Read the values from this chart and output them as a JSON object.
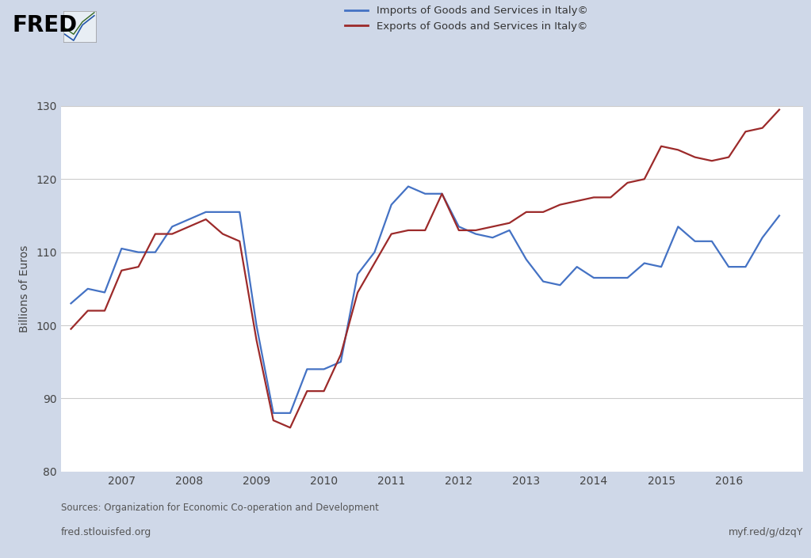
{
  "imports": {
    "x": [
      2006.25,
      2006.5,
      2006.75,
      2007.0,
      2007.25,
      2007.5,
      2007.75,
      2008.0,
      2008.25,
      2008.5,
      2008.75,
      2009.0,
      2009.25,
      2009.5,
      2009.75,
      2010.0,
      2010.25,
      2010.5,
      2010.75,
      2011.0,
      2011.25,
      2011.5,
      2011.75,
      2012.0,
      2012.25,
      2012.5,
      2012.75,
      2013.0,
      2013.25,
      2013.5,
      2013.75,
      2014.0,
      2014.25,
      2014.5,
      2014.75,
      2015.0,
      2015.25,
      2015.5,
      2015.75,
      2016.0,
      2016.25,
      2016.5,
      2016.75
    ],
    "y": [
      103.0,
      105.0,
      104.5,
      110.5,
      110.0,
      110.0,
      113.5,
      114.5,
      115.5,
      115.5,
      115.5,
      100.0,
      88.0,
      88.0,
      94.0,
      94.0,
      95.0,
      107.0,
      110.0,
      116.5,
      119.0,
      118.0,
      118.0,
      113.5,
      112.5,
      112.0,
      113.0,
      109.0,
      106.0,
      105.5,
      108.0,
      106.5,
      106.5,
      106.5,
      108.5,
      108.0,
      113.5,
      111.5,
      111.5,
      108.0,
      108.0,
      112.0,
      115.0
    ]
  },
  "exports": {
    "x": [
      2006.25,
      2006.5,
      2006.75,
      2007.0,
      2007.25,
      2007.5,
      2007.75,
      2008.0,
      2008.25,
      2008.5,
      2008.75,
      2009.0,
      2009.25,
      2009.5,
      2009.75,
      2010.0,
      2010.25,
      2010.5,
      2010.75,
      2011.0,
      2011.25,
      2011.5,
      2011.75,
      2012.0,
      2012.25,
      2012.5,
      2012.75,
      2013.0,
      2013.25,
      2013.5,
      2013.75,
      2014.0,
      2014.25,
      2014.5,
      2014.75,
      2015.0,
      2015.25,
      2015.5,
      2015.75,
      2016.0,
      2016.25,
      2016.5,
      2016.75
    ],
    "y": [
      99.5,
      102.0,
      102.0,
      107.5,
      108.0,
      112.5,
      112.5,
      113.5,
      114.5,
      112.5,
      111.5,
      98.0,
      87.0,
      86.0,
      91.0,
      91.0,
      96.0,
      104.5,
      108.5,
      112.5,
      113.0,
      113.0,
      118.0,
      113.0,
      113.0,
      113.5,
      114.0,
      115.5,
      115.5,
      116.5,
      117.0,
      117.5,
      117.5,
      119.5,
      120.0,
      124.5,
      124.0,
      123.0,
      122.5,
      123.0,
      126.5,
      127.0,
      129.5
    ]
  },
  "import_color": "#4472C4",
  "export_color": "#9C2A2A",
  "bg_outer": "#CFD8E8",
  "bg_plot": "#FFFFFF",
  "ylabel": "Billions of Euros",
  "ylim": [
    80,
    130
  ],
  "yticks": [
    80,
    90,
    100,
    110,
    120,
    130
  ],
  "xlim": [
    2006.1,
    2017.1
  ],
  "xtick_years": [
    2007,
    2008,
    2009,
    2010,
    2011,
    2012,
    2013,
    2014,
    2015,
    2016
  ],
  "legend_imports": "Imports of Goods and Services in Italy©",
  "legend_exports": "Exports of Goods and Services in Italy©",
  "source_text": "Sources: Organization for Economic Co-operation and Development",
  "url_left": "fred.stlouisfed.org",
  "url_right": "myf.red/g/dzqY",
  "fred_text": "FRED",
  "linewidth": 1.6
}
